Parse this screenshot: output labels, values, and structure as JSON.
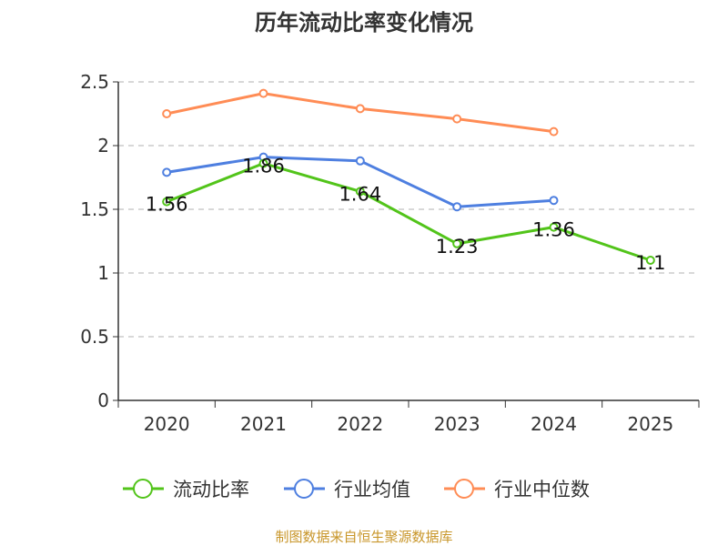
{
  "chart_data": {
    "type": "line",
    "title": "历年流动比率变化情况",
    "categories": [
      "2020",
      "2021",
      "2022",
      "2023",
      "2024",
      "2025"
    ],
    "ylim": [
      0,
      2.5
    ],
    "yticks": [
      "0",
      "0.5",
      "1",
      "1.5",
      "2",
      "2.5"
    ],
    "ytick_values": [
      0,
      0.5,
      1,
      1.5,
      2,
      2.5
    ],
    "grid": true,
    "legend_position": "bottom",
    "series": [
      {
        "name": "流动比率",
        "color": "#52c41a",
        "values": [
          1.56,
          1.86,
          1.64,
          1.23,
          1.36,
          1.1
        ],
        "labels": [
          "1.56",
          "1.86",
          "1.64",
          "1.23",
          "1.36",
          "1.1"
        ]
      },
      {
        "name": "行业均值",
        "color": "#4e7fe0",
        "values": [
          1.79,
          1.91,
          1.88,
          1.52,
          1.57,
          null
        ]
      },
      {
        "name": "行业中位数",
        "color": "#ff8c55",
        "values": [
          2.25,
          2.41,
          2.29,
          2.21,
          2.11,
          null
        ]
      }
    ]
  },
  "footer": "制图数据来自恒生聚源数据库",
  "footer_color": "#c8962a"
}
